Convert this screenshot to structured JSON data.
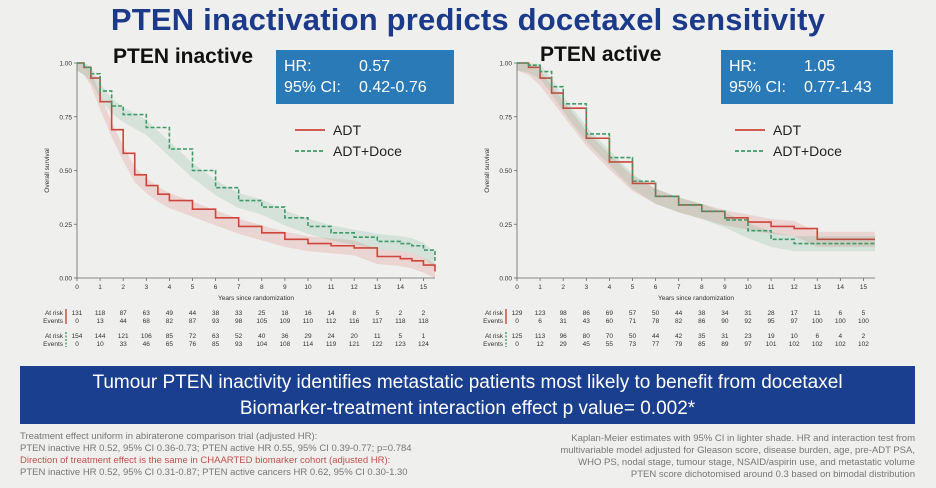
{
  "title": "PTEN inactivation predicts docetaxel sensitivity",
  "panels": {
    "left": {
      "title": "PTEN inactive",
      "hr_label": "HR:",
      "hr_value": "0.57",
      "ci_label": "95% CI:",
      "ci_value": "0.42-0.76"
    },
    "right": {
      "title": "PTEN active",
      "hr_label": "HR:",
      "hr_value": "1.05",
      "ci_label": "95% CI:",
      "ci_value": "0.77-1.43"
    }
  },
  "banner": {
    "line1": "Tumour PTEN inactivity identifies metastatic patients most likely to benefit from docetaxel",
    "line2": "Biomarker-treatment interaction effect p value= 0.002*"
  },
  "footnote_left": [
    {
      "text": "Treatment effect uniform in abiraterone comparison trial (adjusted HR):",
      "red": false
    },
    {
      "text": "PTEN inactive HR 0.52, 95% CI 0.36-0.73; PTEN active HR 0.55, 95% CI 0.39-0.77; p=0.784",
      "red": false
    },
    {
      "text": "Direction of treatment effect is the same in CHAARTED biomarker cohort (adjusted HR):",
      "red": true
    },
    {
      "text": "PTEN inactive HR 0.52, 95% CI 0.31-0.87; PTEN active cancers HR 0.62, 95% CI 0.30-1.30",
      "red": false
    }
  ],
  "footnote_right": [
    "Kaplan-Meier estimates with 95% CI in lighter shade. HR and interaction test from",
    "multivariable model adjusted for Gleason score, disease burden, age, pre-ADT PSA,",
    "WHO PS, nodal stage, tumour stage, NSAID/aspirin use, and metastatic volume",
    "PTEN score dichotomised around 0.3 based on bimodal distribution"
  ],
  "colors": {
    "adt": "#d0453a",
    "doce": "#3e9a6a",
    "title": "#1b3a8a",
    "banner": "#1a3f8e",
    "hrbox": "#2a7ab8"
  },
  "chart_data": [
    {
      "type": "line",
      "title": "PTEN inactive",
      "xlabel": "Years since randomization",
      "ylabel": "Overall survival",
      "xlim": [
        0,
        15.5
      ],
      "ylim": [
        0,
        1
      ],
      "xticks": [
        0,
        1,
        2,
        3,
        4,
        5,
        6,
        7,
        8,
        9,
        10,
        11,
        12,
        13,
        14,
        15
      ],
      "yticks": [
        "0.00",
        "0.25",
        "0.50",
        "0.75",
        "1.00"
      ],
      "legend_position": "right",
      "series": [
        {
          "name": "ADT",
          "style": "solid",
          "x": [
            0,
            0.3,
            0.6,
            1,
            1.5,
            2,
            2.5,
            3,
            3.5,
            4,
            5,
            6,
            7,
            8,
            9,
            10,
            11,
            12,
            13,
            14,
            14.5,
            15,
            15.5
          ],
          "y": [
            1,
            0.98,
            0.93,
            0.82,
            0.69,
            0.58,
            0.48,
            0.43,
            0.39,
            0.36,
            0.32,
            0.28,
            0.24,
            0.21,
            0.18,
            0.16,
            0.15,
            0.14,
            0.1,
            0.09,
            0.08,
            0.06,
            0.03
          ]
        },
        {
          "name": "ADT+Doce",
          "style": "dashed",
          "x": [
            0,
            0.3,
            0.6,
            1,
            1.5,
            2,
            3,
            4,
            5,
            6,
            7,
            8,
            9,
            10,
            11,
            12,
            13,
            14,
            14.5,
            15,
            15.5
          ],
          "y": [
            1,
            0.98,
            0.95,
            0.87,
            0.8,
            0.76,
            0.7,
            0.6,
            0.5,
            0.42,
            0.36,
            0.33,
            0.28,
            0.24,
            0.21,
            0.19,
            0.17,
            0.16,
            0.15,
            0.13,
            0.08
          ]
        }
      ],
      "risk_table": {
        "groups": [
          {
            "at_risk": [
              "131",
              "118",
              "87",
              "63",
              "49",
              "44",
              "38",
              "33",
              "25",
              "18",
              "16",
              "14",
              "8",
              "5",
              "2",
              "2"
            ],
            "events": [
              "0",
              "13",
              "44",
              "68",
              "82",
              "87",
              "93",
              "98",
              "105",
              "109",
              "110",
              "112",
              "116",
              "117",
              "118",
              "118"
            ]
          },
          {
            "at_risk": [
              "154",
              "144",
              "121",
              "106",
              "85",
              "72",
              "63",
              "52",
              "40",
              "36",
              "29",
              "24",
              "20",
              "11",
              "5",
              "1"
            ],
            "events": [
              "0",
              "10",
              "33",
              "46",
              "65",
              "76",
              "85",
              "93",
              "104",
              "108",
              "114",
              "119",
              "121",
              "122",
              "123",
              "124"
            ]
          }
        ]
      }
    },
    {
      "type": "line",
      "title": "PTEN active",
      "xlabel": "Years since randomization",
      "ylabel": "Overall survival",
      "xlim": [
        0,
        15.5
      ],
      "ylim": [
        0,
        1
      ],
      "xticks": [
        0,
        1,
        2,
        3,
        4,
        5,
        6,
        7,
        8,
        9,
        10,
        11,
        12,
        13,
        14,
        15
      ],
      "yticks": [
        "0.00",
        "0.25",
        "0.50",
        "0.75",
        "1.00"
      ],
      "legend_position": "right",
      "series": [
        {
          "name": "ADT",
          "style": "solid",
          "x": [
            0,
            0.5,
            1,
            1.5,
            2,
            3,
            4,
            5,
            6,
            7,
            8,
            9,
            10,
            11,
            12,
            13,
            14,
            15,
            15.5
          ],
          "y": [
            1,
            0.98,
            0.93,
            0.86,
            0.79,
            0.65,
            0.54,
            0.44,
            0.38,
            0.34,
            0.31,
            0.28,
            0.26,
            0.24,
            0.23,
            0.18,
            0.18,
            0.18,
            0.18
          ]
        },
        {
          "name": "ADT+Doce",
          "style": "dashed",
          "x": [
            0,
            0.5,
            1,
            1.5,
            2,
            3,
            4,
            5,
            6,
            7,
            8,
            9,
            10,
            11,
            12,
            13,
            14,
            15,
            15.5
          ],
          "y": [
            1,
            0.99,
            0.96,
            0.89,
            0.81,
            0.67,
            0.56,
            0.45,
            0.38,
            0.34,
            0.31,
            0.27,
            0.22,
            0.18,
            0.16,
            0.16,
            0.16,
            0.16,
            0.16
          ]
        }
      ],
      "risk_table": {
        "groups": [
          {
            "at_risk": [
              "129",
              "123",
              "98",
              "86",
              "69",
              "57",
              "50",
              "44",
              "38",
              "34",
              "31",
              "28",
              "17",
              "11",
              "6",
              "5"
            ],
            "events": [
              "0",
              "6",
              "31",
              "43",
              "60",
              "71",
              "78",
              "82",
              "86",
              "90",
              "92",
              "95",
              "97",
              "100",
              "100",
              "100"
            ]
          },
          {
            "at_risk": [
              "125",
              "113",
              "96",
              "80",
              "70",
              "50",
              "44",
              "42",
              "35",
              "31",
              "23",
              "19",
              "10",
              "6",
              "4",
              "2"
            ],
            "events": [
              "0",
              "12",
              "29",
              "45",
              "55",
              "73",
              "77",
              "79",
              "85",
              "89",
              "97",
              "101",
              "102",
              "102",
              "102",
              "102"
            ]
          }
        ]
      }
    }
  ],
  "legend_labels": {
    "adt": "ADT",
    "doce": "ADT+Doce"
  },
  "risk_labels": {
    "at_risk": "At risk",
    "events": "Events"
  }
}
